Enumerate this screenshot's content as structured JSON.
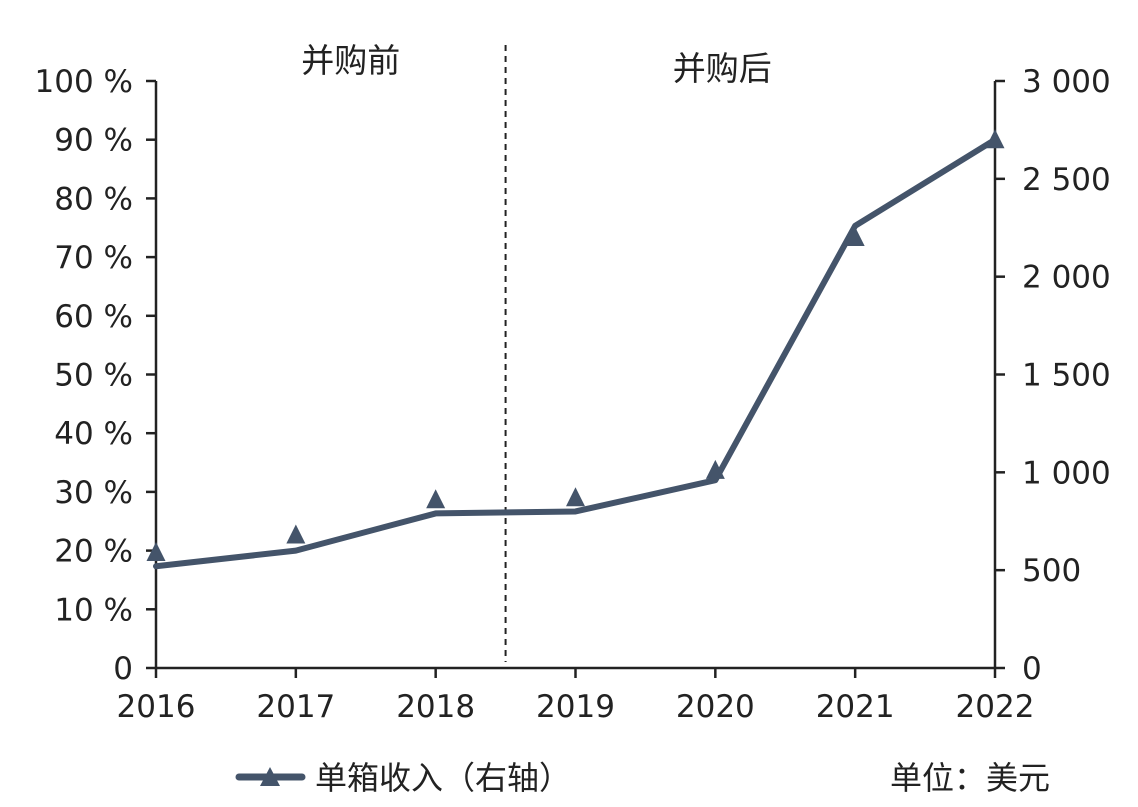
{
  "chart_data": {
    "type": "line",
    "title": "",
    "x": [
      "2016",
      "2017",
      "2018",
      "2019",
      "2020",
      "2021",
      "2022"
    ],
    "y_left": {
      "ticks": [
        "0",
        "10 %",
        "20 %",
        "30 %",
        "40 %",
        "50 %",
        "60 %",
        "70 %",
        "80 %",
        "90 %",
        "100 %"
      ],
      "range": [
        0,
        100
      ]
    },
    "y_right": {
      "ticks": [
        "0",
        "500",
        "1 000",
        "1 500",
        "2 000",
        "2 500",
        "3 000"
      ],
      "range": [
        0,
        3000
      ]
    },
    "series": [
      {
        "name": "单箱收入（右轴）",
        "axis": "right",
        "color": "#44546a",
        "marker": "triangle",
        "marker_values": [
          590,
          680,
          860,
          870,
          1010,
          2200,
          2700
        ],
        "line_points": [
          {
            "x": "2016",
            "y": 520
          },
          {
            "x": "2017",
            "y": 600
          },
          {
            "x": "2018",
            "y": 790
          },
          {
            "x": "2019",
            "y": 800
          },
          {
            "x": "2020",
            "y": 960
          },
          {
            "x": "2021",
            "y": 2260
          },
          {
            "x": "2022",
            "y": 2700
          }
        ]
      }
    ],
    "divider": {
      "between": [
        "2018",
        "2019"
      ],
      "style": "dashed"
    },
    "annotations": {
      "before": "并购前",
      "after": "并购后"
    },
    "unit_label": "单位：美元",
    "legend": "bottom-left",
    "grid": false
  }
}
